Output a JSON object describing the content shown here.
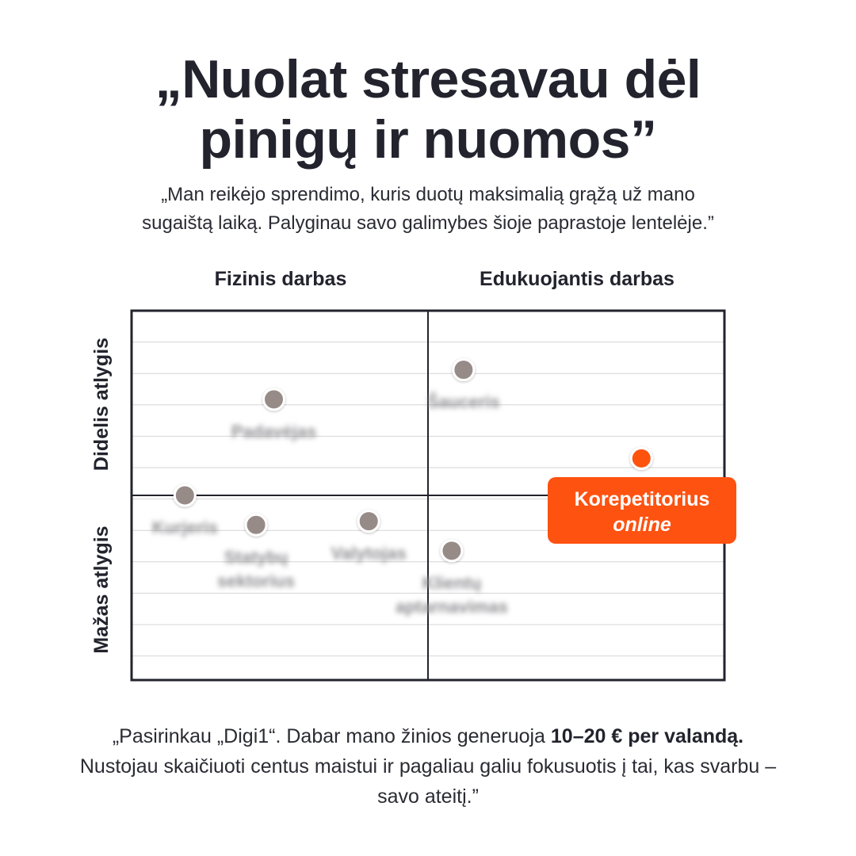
{
  "headline": {
    "line1": "„Nuolat stresavau dėl",
    "line2": "pinigų ir nuomos”"
  },
  "intro": {
    "line1": "„Man reikėjo sprendimo, kuris duotų maksimalią grąžą už mano",
    "line2": "sugaištą laiką. Palyginau savo galimybes šioje paprastoje lentelėje.”"
  },
  "chart_data": {
    "type": "scatter",
    "columns": [
      "Fizinis darbas",
      "Edukuojantis darbas"
    ],
    "rows": [
      "Didelis atlygis",
      "Mažas atlygis"
    ],
    "x_axis": {
      "range": [
        0,
        10
      ],
      "split": 5,
      "low_label": "Fizinis darbas",
      "high_label": "Edukuojantis darbas"
    },
    "y_axis": {
      "range": [
        0,
        10
      ],
      "split": 5,
      "low_label": "Mažas atlygis",
      "high_label": "Didelis atlygis"
    },
    "grid": true,
    "points": [
      {
        "label": "Padavėjas",
        "x": 2.4,
        "y": 7.6,
        "blurred": true,
        "highlight": false
      },
      {
        "label": "Šauceris",
        "x": 5.6,
        "y": 8.4,
        "blurred": true,
        "highlight": false
      },
      {
        "label": "Kurjeris",
        "x": 0.9,
        "y": 5.0,
        "blurred": true,
        "highlight": false
      },
      {
        "label": "Statybų sektorius",
        "x": 2.1,
        "y": 4.2,
        "blurred": true,
        "highlight": false
      },
      {
        "label": "Valytojas",
        "x": 4.0,
        "y": 4.3,
        "blurred": true,
        "highlight": false
      },
      {
        "label": "Klientų aptarnavimas",
        "x": 5.4,
        "y": 3.5,
        "blurred": true,
        "highlight": false
      },
      {
        "label": "Korepetitorius online",
        "x": 8.6,
        "y": 6.0,
        "blurred": false,
        "highlight": true
      }
    ],
    "point_color": "#978b87",
    "highlight_color": "#fe5211"
  },
  "callout": {
    "line1": "Korepetitorius",
    "line2": "online"
  },
  "footer": {
    "part1": "„Pasirinkau „Digi1“. Dabar mano žinios generuoja ",
    "bold1": "10–20 € per valandą.",
    "part2": " Nustojau skaičiuoti centus maistui ir pagaliau galiu fokusuotis į tai, kas svarbu – savo ateitį.”"
  }
}
